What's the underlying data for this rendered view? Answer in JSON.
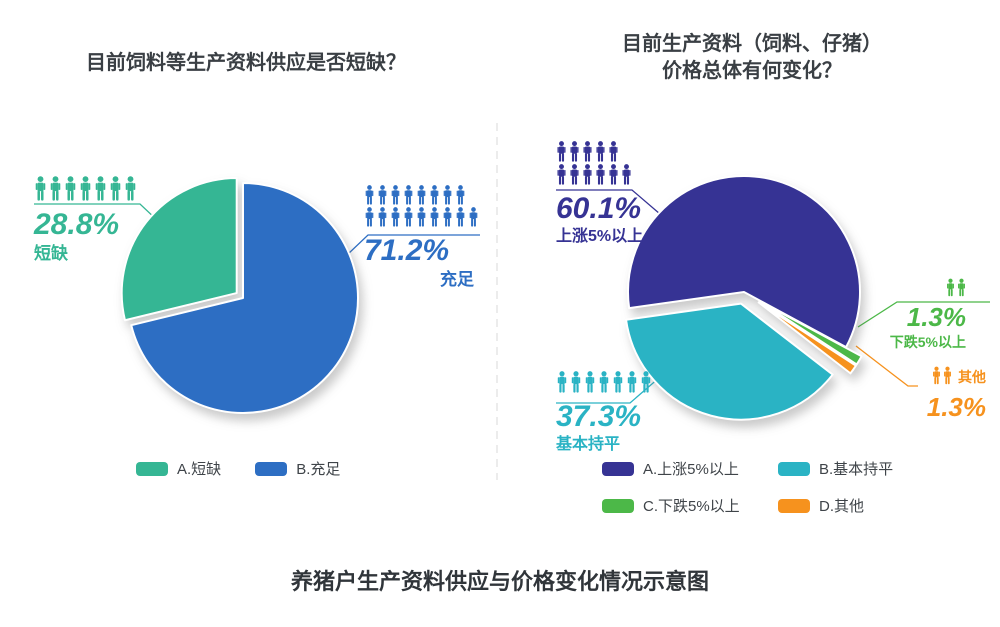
{
  "caption": "养猪户生产资料供应与价格变化情况示意图",
  "chart_data": [
    {
      "type": "pie",
      "title": "目前饲料等生产资料供应是否短缺？",
      "start_angle": 0,
      "legend_position": "bottom",
      "slices": [
        {
          "label": "B.充足",
          "name": "充足",
          "value": 71.2,
          "pct_label": "71.2%",
          "color": "#2d6ec3",
          "explode": 0,
          "icon_rows": [
            8,
            9
          ]
        },
        {
          "label": "A.短缺",
          "name": "短缺",
          "value": 28.8,
          "pct_label": "28.8%",
          "color": "#35b694",
          "explode": 8,
          "icon_rows": [
            7
          ]
        }
      ],
      "legend": [
        {
          "label": "A.短缺",
          "color": "#35b694"
        },
        {
          "label": "B.充足",
          "color": "#2d6ec3"
        }
      ]
    },
    {
      "type": "pie",
      "title": "目前生产资料（饲料、仔猪）\n价格总体有何变化？",
      "start_angle": -98,
      "legend_position": "bottom",
      "slices": [
        {
          "label": "A.上涨5%以上",
          "name": "上涨5%以上",
          "value": 60.1,
          "pct_label": "60.1%",
          "color": "#363394",
          "explode": 0,
          "icon_rows": [
            5,
            6
          ]
        },
        {
          "label": "C.下跌5%以上",
          "name": "下跌5%以上",
          "value": 1.3,
          "pct_label": "1.3%",
          "color": "#4cb848",
          "explode": 18,
          "icon_rows": [
            2
          ]
        },
        {
          "label": "D.其他",
          "name": "其他",
          "value": 1.3,
          "pct_label": "1.3%",
          "color": "#f6921e",
          "explode": 18,
          "icon_rows": [
            2
          ]
        },
        {
          "label": "B.基本持平",
          "name": "基本持平",
          "value": 37.3,
          "pct_label": "37.3%",
          "color": "#2ab3c4",
          "explode": 12,
          "icon_rows": [
            7
          ]
        }
      ],
      "legend": [
        {
          "label": "A.上涨5%以上",
          "color": "#363394"
        },
        {
          "label": "B.基本持平",
          "color": "#2ab3c4"
        },
        {
          "label": "C.下跌5%以上",
          "color": "#4cb848"
        },
        {
          "label": "D.其他",
          "color": "#f6921e"
        }
      ]
    }
  ]
}
